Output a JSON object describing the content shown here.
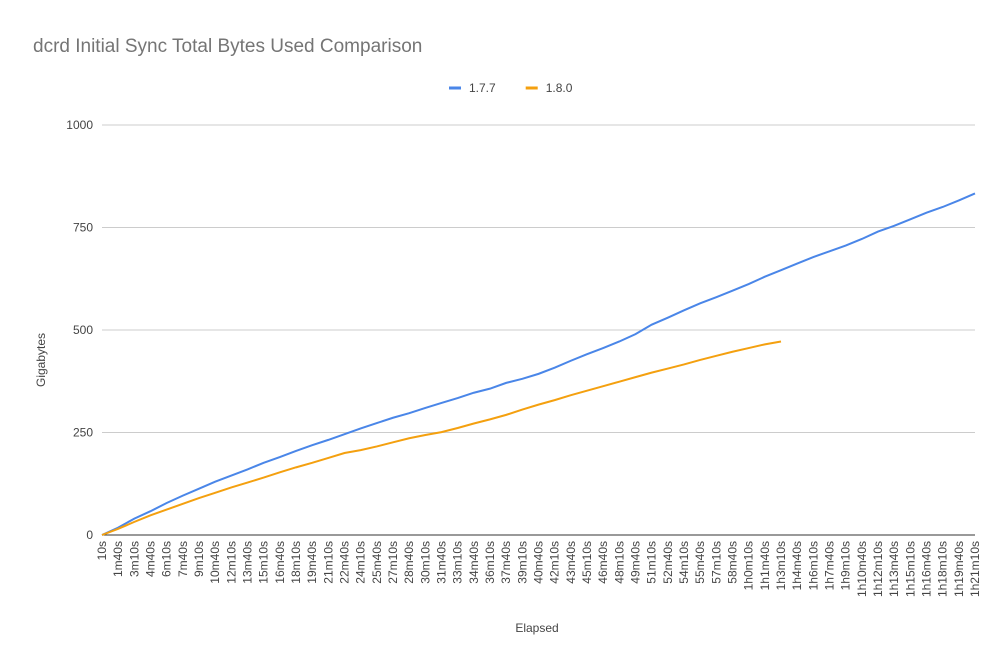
{
  "chart_data": {
    "type": "line",
    "title": "dcrd Initial Sync Total Bytes Used Comparison",
    "x_label": "Elapsed",
    "y_label": "Gigabytes",
    "categories": [
      "10s",
      "1m40s",
      "3m10s",
      "4m40s",
      "6m10s",
      "7m40s",
      "9m10s",
      "10m40s",
      "12m10s",
      "13m40s",
      "15m10s",
      "16m40s",
      "18m10s",
      "19m40s",
      "21m10s",
      "22m40s",
      "24m10s",
      "25m40s",
      "27m10s",
      "28m40s",
      "30m10s",
      "31m40s",
      "33m10s",
      "34m40s",
      "36m10s",
      "37m40s",
      "39m10s",
      "40m40s",
      "42m10s",
      "43m40s",
      "45m10s",
      "46m40s",
      "48m10s",
      "49m40s",
      "51m10s",
      "52m40s",
      "54m10s",
      "55m40s",
      "57m10s",
      "58m40s",
      "1h0m10s",
      "1h1m40s",
      "1h3m10s",
      "1h4m40s",
      "1h6m10s",
      "1h7m40s",
      "1h9m10s",
      "1h10m40s",
      "1h12m10s",
      "1h13m40s",
      "1h15m10s",
      "1h16m40s",
      "1h18m10s",
      "1h19m40s",
      "1h21m10s"
    ],
    "series": [
      {
        "name": "1.7.7",
        "color": "#4a86e8",
        "values": [
          0,
          18,
          40,
          58,
          78,
          96,
          113,
          130,
          145,
          160,
          176,
          190,
          205,
          219,
          232,
          246,
          260,
          273,
          286,
          297,
          310,
          322,
          334,
          347,
          357,
          371,
          381,
          393,
          408,
          425,
          441,
          456,
          472,
          490,
          513,
          530,
          548,
          565,
          580,
          596,
          612,
          630,
          646,
          662,
          678,
          692,
          706,
          722,
          740,
          754,
          770,
          786,
          800,
          816,
          833
        ]
      },
      {
        "name": "1.8.0",
        "color": "#f4a00f",
        "values": [
          0,
          15,
          32,
          48,
          62,
          76,
          90,
          103,
          116,
          128,
          140,
          153,
          165,
          176,
          188,
          200,
          207,
          216,
          226,
          236,
          244,
          251,
          261,
          272,
          282,
          293,
          306,
          318,
          329,
          341,
          352,
          363,
          374,
          385,
          396,
          406,
          416,
          427,
          437,
          447,
          456,
          465,
          472,
          null,
          null,
          null,
          null,
          null,
          null,
          null,
          null,
          null,
          null,
          null,
          null
        ]
      }
    ],
    "ylim": [
      0,
      1000
    ],
    "yticks": [
      0,
      250,
      500,
      750,
      1000
    ],
    "grid": true,
    "legend": "top"
  }
}
